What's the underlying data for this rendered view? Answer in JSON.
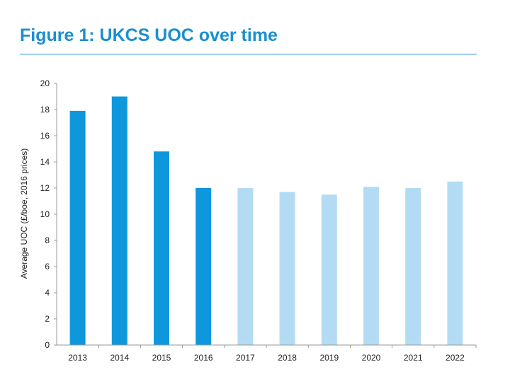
{
  "chart_data": {
    "type": "bar",
    "title": "Figure 1: UKCS UOC over time",
    "xlabel": "",
    "ylabel": "Average UOC (£/boe, 2016 prices)",
    "categories": [
      "2013",
      "2014",
      "2015",
      "2016",
      "2017",
      "2018",
      "2019",
      "2020",
      "2021",
      "2022"
    ],
    "values": [
      17.9,
      19.0,
      14.8,
      12.0,
      12.0,
      11.7,
      11.5,
      12.1,
      12.0,
      12.5
    ],
    "ylim": [
      0,
      20
    ],
    "yticks": [
      "0",
      "2",
      "4",
      "6",
      "8",
      "10",
      "12",
      "14",
      "16",
      "18",
      "20"
    ],
    "grid": false,
    "legend": "none",
    "colors": {
      "title": "#1a8fd0",
      "rule": "#1a8fd0",
      "actual": "#0e97dc",
      "forecast": "#b3dcf4",
      "axis": "#9a9a9a"
    },
    "bar_styles": [
      "actual",
      "actual",
      "actual",
      "actual",
      "forecast",
      "forecast",
      "forecast",
      "forecast",
      "forecast",
      "forecast"
    ]
  }
}
